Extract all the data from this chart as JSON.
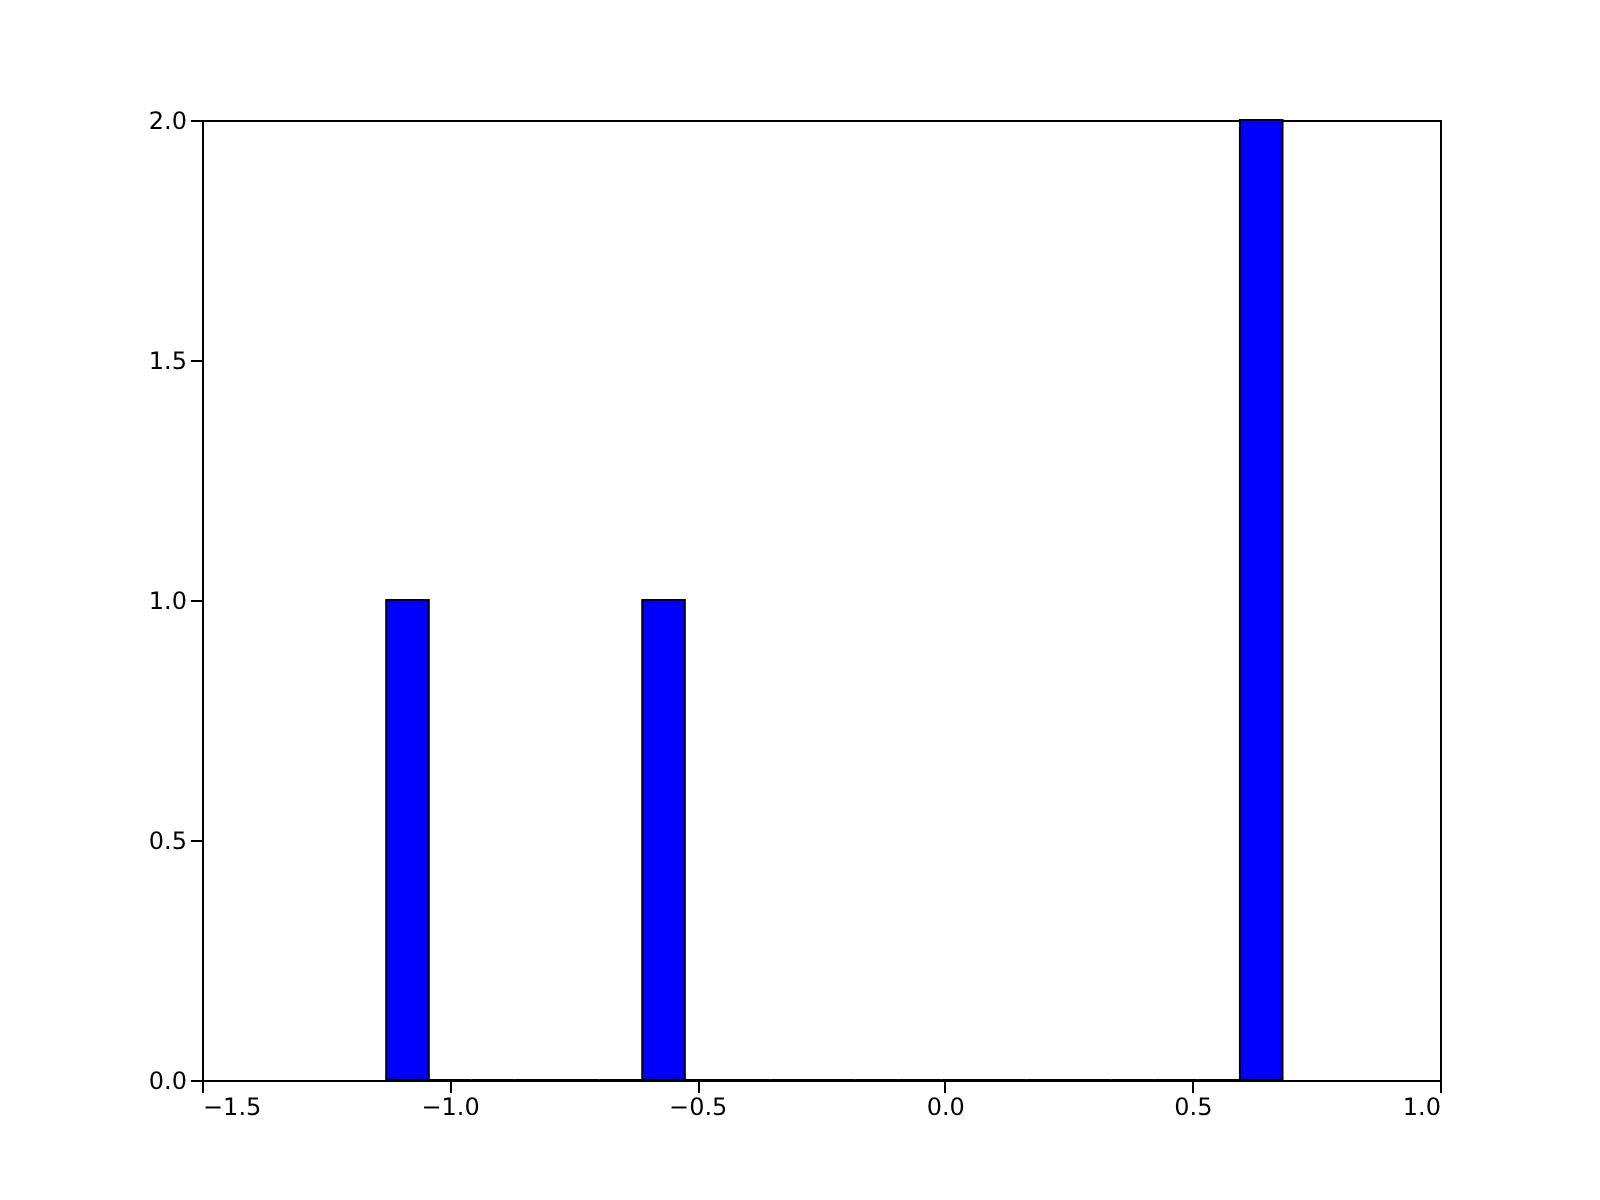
{
  "chart_data": {
    "type": "histogram",
    "bins": [
      -1.128,
      -1.042,
      -0.956,
      -0.869,
      -0.783,
      -0.697,
      -0.611,
      -0.525,
      -0.438,
      -0.352,
      -0.266,
      -0.18,
      -0.094,
      -0.007,
      0.079,
      0.165,
      0.251,
      0.337,
      0.424,
      0.51,
      0.596,
      0.682
    ],
    "values": [
      1,
      0,
      0,
      0,
      0,
      0,
      1,
      0,
      0,
      0,
      0,
      0,
      0,
      0,
      0,
      0,
      0,
      0,
      0,
      0,
      2
    ],
    "color": "#0000ff",
    "xlim": [
      -1.5,
      1.0
    ],
    "xticks": [
      {
        "value": -1.5,
        "label": "−1.5"
      },
      {
        "value": -1.0,
        "label": "−1.0"
      },
      {
        "value": -0.5,
        "label": "−0.5"
      },
      {
        "value": 0.0,
        "label": "0.0"
      },
      {
        "value": 0.5,
        "label": "0.5"
      },
      {
        "value": 1.0,
        "label": "1.0"
      }
    ],
    "ylim": [
      0,
      2
    ],
    "yticks": [
      {
        "value": 0,
        "label": "0.0"
      },
      {
        "value": 0.5,
        "label": "0.5"
      },
      {
        "value": 1.0,
        "label": "1.0"
      },
      {
        "value": 1.5,
        "label": "1.5"
      },
      {
        "value": 2.0,
        "label": "2.0"
      }
    ],
    "grid": false
  }
}
